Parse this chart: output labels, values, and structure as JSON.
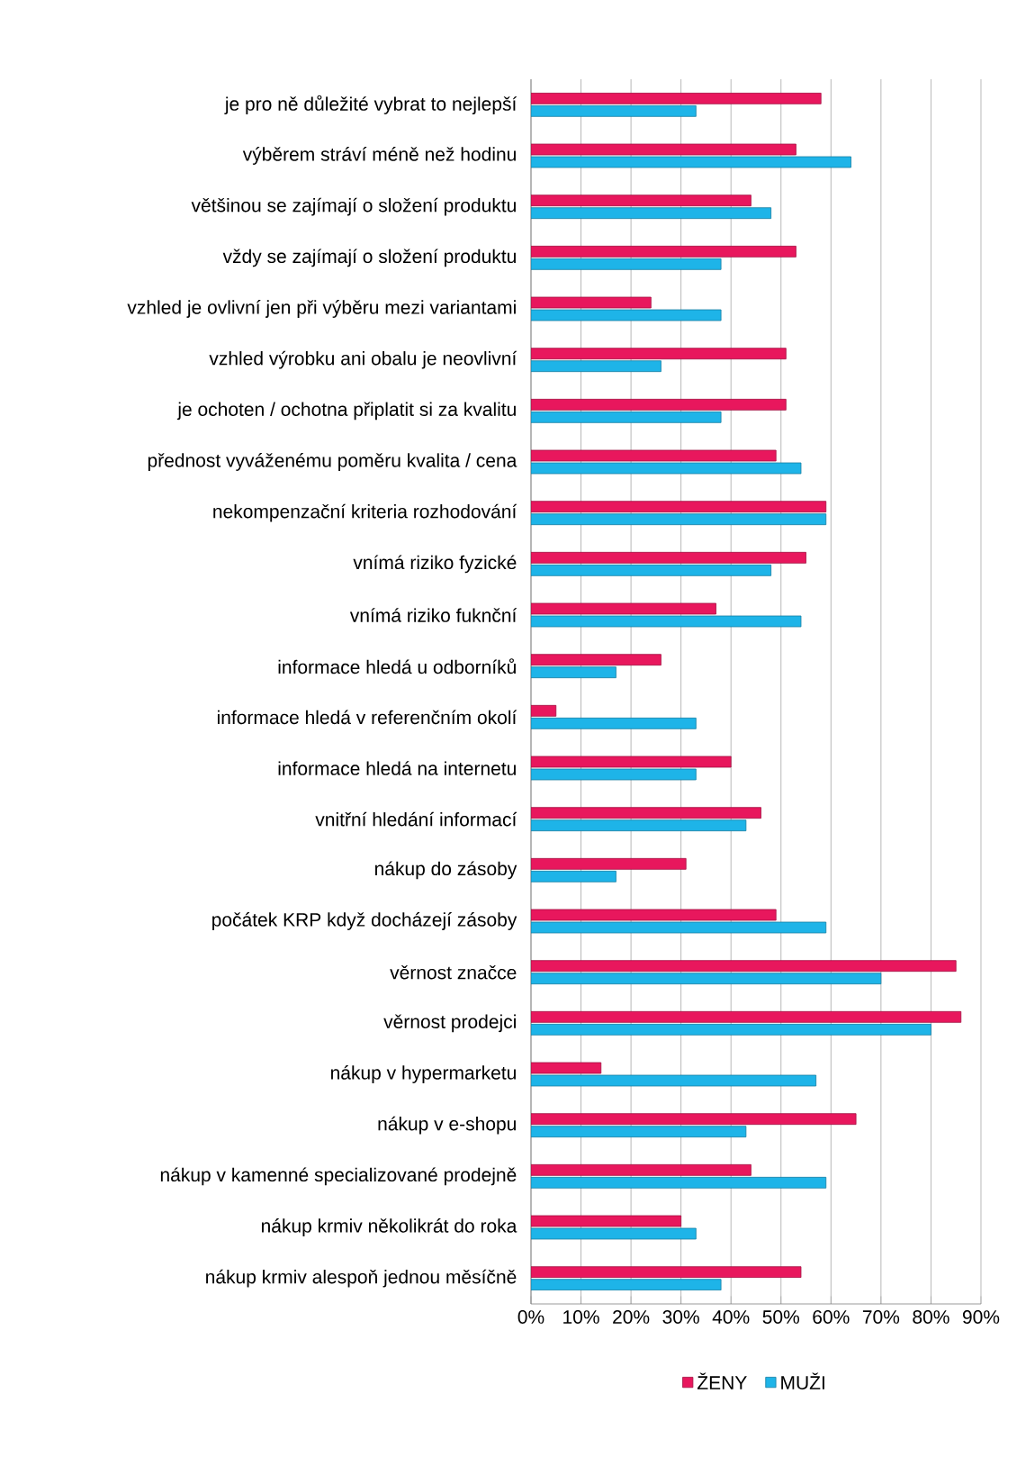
{
  "chart_data": {
    "type": "bar",
    "orientation": "horizontal",
    "categories": [
      "je pro ně důležité vybrat to nejlepší",
      "výběrem stráví méně než hodinu",
      "většinou se zajímají o složení produktu",
      "vždy se zajímají o složení produktu",
      "vzhled je ovlivní jen při výběru mezi variantami",
      "vzhled výrobku ani obalu je neovlivní",
      "je ochoten / ochotna připlatit si za kvalitu",
      "přednost vyváženému poměru kvalita / cena",
      "nekompenzační kriteria rozhodování",
      "vnímá riziko fyzické",
      "vnímá riziko fuknční",
      "informace hledá u odborníků",
      "informace hledá v referenčním okolí",
      "informace hledá na internetu",
      "vnitřní hledání informací",
      "nákup do zásoby",
      "počátek KRP když docházejí zásoby",
      "věrnost značce",
      "věrnost prodejci",
      "nákup v hypermarketu",
      "nákup v e-shopu",
      "nákup v kamenné specializované prodejně",
      "nákup krmiv několikrát do roka",
      "nákup krmiv alespoň jednou měsíčně"
    ],
    "series": [
      {
        "name": "ŽENY",
        "color": "#e8175d",
        "values": [
          58,
          53,
          44,
          53,
          24,
          51,
          51,
          49,
          59,
          55,
          37,
          26,
          5,
          40,
          46,
          31,
          49,
          85,
          86,
          14,
          65,
          44,
          30,
          54
        ]
      },
      {
        "name": "MUŽI",
        "color": "#1eb4e8",
        "values": [
          33,
          64,
          48,
          38,
          38,
          26,
          38,
          54,
          59,
          48,
          54,
          17,
          33,
          33,
          43,
          17,
          59,
          70,
          80,
          57,
          43,
          59,
          33,
          38
        ]
      }
    ],
    "xlim": [
      0,
      90
    ],
    "xticks": [
      {
        "value": 0,
        "label": "0%"
      },
      {
        "value": 10,
        "label": "10%"
      },
      {
        "value": 20,
        "label": "20%"
      },
      {
        "value": 30,
        "label": "30%"
      },
      {
        "value": 40,
        "label": "40%"
      },
      {
        "value": 50,
        "label": "50%"
      },
      {
        "value": 60,
        "label": "60%"
      },
      {
        "value": 70,
        "label": "70%"
      },
      {
        "value": 80,
        "label": "80%"
      },
      {
        "value": 90,
        "label": "90%"
      }
    ],
    "grid": "x",
    "legend": "bottom"
  }
}
